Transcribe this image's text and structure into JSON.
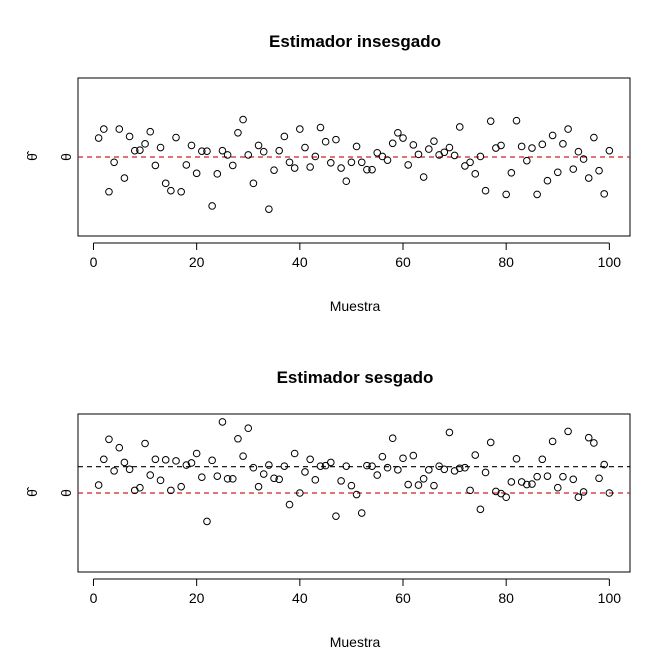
{
  "chart_data": [
    {
      "type": "scatter",
      "title": "Estimador insesgado",
      "xlabel": "Muestra",
      "ylabel": "θ̂",
      "xlim": [
        -3,
        104
      ],
      "ylim": [
        -1.5,
        1.5
      ],
      "xticks": [
        0,
        20,
        40,
        60,
        80,
        100
      ],
      "ytick_label": "θ",
      "grid": false,
      "reference_lines": [
        {
          "y": 0,
          "style": "dashed",
          "color": "#cc2222"
        }
      ],
      "x": [
        1,
        2,
        3,
        4,
        5,
        6,
        7,
        8,
        9,
        10,
        11,
        12,
        13,
        14,
        15,
        16,
        17,
        18,
        19,
        20,
        21,
        22,
        23,
        24,
        25,
        26,
        27,
        28,
        29,
        30,
        31,
        32,
        33,
        34,
        35,
        36,
        37,
        38,
        39,
        40,
        41,
        42,
        43,
        44,
        45,
        46,
        47,
        48,
        49,
        50,
        51,
        52,
        53,
        54,
        55,
        56,
        57,
        58,
        59,
        60,
        61,
        62,
        63,
        64,
        65,
        66,
        67,
        68,
        69,
        70,
        71,
        72,
        73,
        74,
        75,
        76,
        77,
        78,
        79,
        80,
        81,
        82,
        83,
        84,
        85,
        86,
        87,
        88,
        89,
        90,
        91,
        92,
        93,
        94,
        95,
        96,
        97,
        98,
        99,
        100
      ],
      "y": [
        0.36,
        0.53,
        -0.66,
        -0.1,
        0.53,
        -0.4,
        0.39,
        0.12,
        0.13,
        0.25,
        0.48,
        -0.16,
        0.18,
        -0.5,
        -0.64,
        0.37,
        -0.66,
        -0.15,
        0.22,
        -0.31,
        0.11,
        0.11,
        -0.93,
        -0.32,
        0.12,
        0.04,
        -0.16,
        0.46,
        0.71,
        0.04,
        -0.5,
        0.22,
        0.1,
        -0.99,
        -0.25,
        0.12,
        0.39,
        -0.1,
        -0.21,
        0.53,
        0.18,
        -0.19,
        0.01,
        0.56,
        0.29,
        -0.11,
        0.33,
        -0.21,
        -0.46,
        -0.1,
        0.2,
        -0.1,
        -0.24,
        -0.24,
        0.08,
        0.01,
        -0.06,
        0.26,
        0.46,
        0.36,
        -0.15,
        0.23,
        0.05,
        -0.38,
        0.15,
        0.3,
        0.04,
        0.09,
        0.18,
        0.03,
        0.57,
        -0.17,
        -0.1,
        -0.32,
        0.01,
        -0.64,
        0.68,
        0.17,
        0.22,
        -0.71,
        -0.3,
        0.69,
        0.2,
        -0.07,
        0.17,
        -0.71,
        0.24,
        -0.45,
        0.41,
        -0.29,
        0.25,
        0.53,
        -0.23,
        0.1,
        -0.04,
        -0.4,
        0.37,
        -0.26,
        -0.7,
        0.12
      ]
    },
    {
      "type": "scatter",
      "title": "Estimador sesgado",
      "xlabel": "Muestra",
      "ylabel": "θ̂",
      "xlim": [
        -3,
        104
      ],
      "ylim": [
        -1.5,
        1.5
      ],
      "xticks": [
        0,
        20,
        40,
        60,
        80,
        100
      ],
      "ytick_label": "θ",
      "grid": false,
      "reference_lines": [
        {
          "y": 0,
          "style": "dashed",
          "color": "#cc2222"
        },
        {
          "y": 0.5,
          "style": "dashed",
          "color": "#000000"
        }
      ],
      "x": [
        1,
        2,
        3,
        4,
        5,
        6,
        7,
        8,
        9,
        10,
        11,
        12,
        13,
        14,
        15,
        16,
        17,
        18,
        19,
        20,
        21,
        22,
        23,
        24,
        25,
        26,
        27,
        28,
        29,
        30,
        31,
        32,
        33,
        34,
        35,
        36,
        37,
        38,
        39,
        40,
        41,
        42,
        43,
        44,
        45,
        46,
        47,
        48,
        49,
        50,
        51,
        52,
        53,
        54,
        55,
        56,
        57,
        58,
        59,
        60,
        61,
        62,
        63,
        64,
        65,
        66,
        67,
        68,
        69,
        70,
        71,
        72,
        73,
        74,
        75,
        76,
        77,
        78,
        79,
        80,
        81,
        82,
        83,
        84,
        85,
        86,
        87,
        88,
        89,
        90,
        91,
        92,
        93,
        94,
        95,
        96,
        97,
        98,
        99,
        100
      ],
      "y": [
        0.15,
        0.64,
        1.02,
        0.42,
        0.86,
        0.58,
        0.45,
        0.05,
        0.1,
        0.94,
        0.34,
        0.64,
        0.24,
        0.63,
        0.05,
        0.61,
        0.12,
        0.53,
        0.57,
        0.75,
        0.3,
        -0.54,
        0.62,
        0.32,
        1.35,
        0.27,
        0.27,
        1.03,
        0.7,
        1.23,
        0.48,
        0.12,
        0.36,
        0.53,
        0.28,
        0.26,
        0.51,
        -0.22,
        0.75,
        0.0,
        0.4,
        0.64,
        0.25,
        0.51,
        0.52,
        0.58,
        -0.44,
        0.23,
        0.51,
        0.14,
        -0.03,
        -0.38,
        0.52,
        0.51,
        0.34,
        0.69,
        0.48,
        1.04,
        0.44,
        0.66,
        0.16,
        0.71,
        0.15,
        0.27,
        0.44,
        0.14,
        0.51,
        0.45,
        1.15,
        0.42,
        0.47,
        0.48,
        0.05,
        0.72,
        -0.31,
        0.39,
        0.96,
        0.03,
        -0.01,
        -0.08,
        0.21,
        0.65,
        0.21,
        0.16,
        0.17,
        0.31,
        0.64,
        0.32,
        0.98,
        0.1,
        0.31,
        1.17,
        0.26,
        -0.08,
        0.02,
        1.05,
        0.95,
        0.28,
        0.54,
        0.0
      ]
    }
  ]
}
